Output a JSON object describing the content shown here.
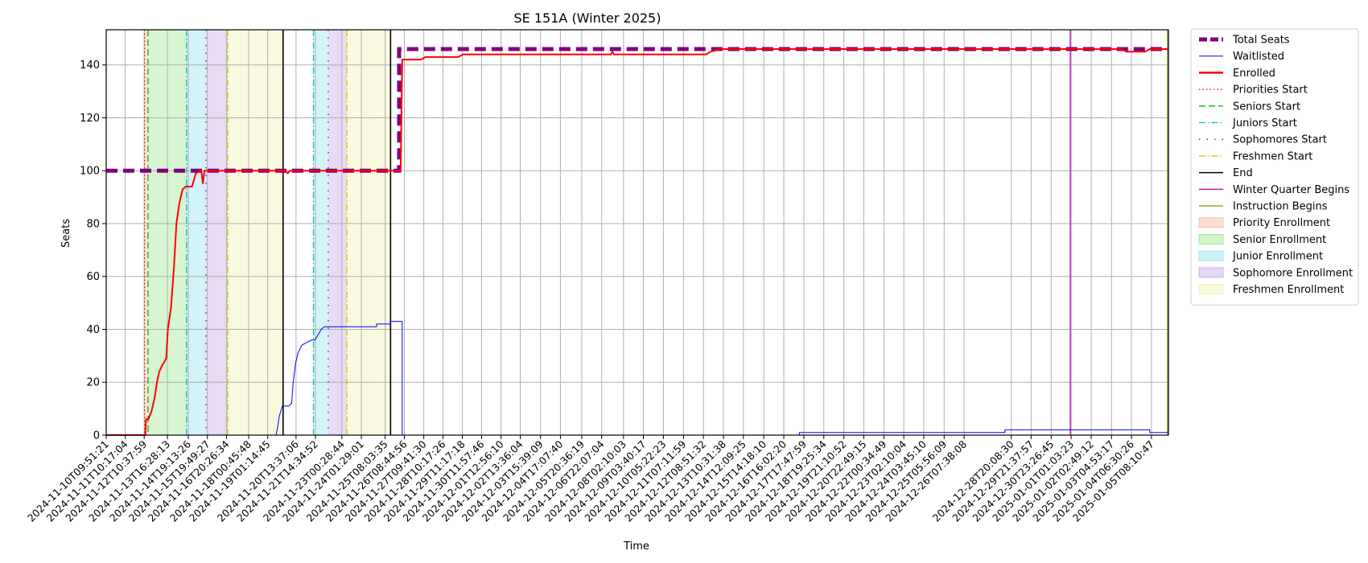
{
  "chart_data": {
    "type": "line",
    "title": "SE 151A (Winter 2025)",
    "xlabel": "Time",
    "ylabel": "Seats",
    "ylim": [
      0,
      153.3
    ],
    "yticks": [
      0,
      20,
      40,
      60,
      80,
      100,
      120,
      140
    ],
    "x_range": [
      "2024-11-10T09:51:21",
      "2025-01-06T06:00:00"
    ],
    "x_ticks": [
      "2024-11-10T09:51:21",
      "2024-11-11T10:17:04",
      "2024-11-12T10:37:59",
      "2024-11-13T16:28:13",
      "2024-11-14T19:13:26",
      "2024-11-15T19:49:27",
      "2024-11-16T20:26:34",
      "2024-11-18T00:45:48",
      "2024-11-19T01:14:45",
      "2024-11-20T13:37:06",
      "2024-11-21T14:34:52",
      "2024-11-23T00:28:44",
      "2024-11-24T01:29:01",
      "2024-11-25T08:03:35",
      "2024-11-26T08:44:56",
      "2024-11-27T09:41:30",
      "2024-11-28T10:17:26",
      "2024-11-29T11:17:18",
      "2024-11-30T11:57:46",
      "2024-12-01T12:56:10",
      "2024-12-02T13:36:04",
      "2024-12-03T15:39:09",
      "2024-12-04T17:07:40",
      "2024-12-05T20:36:19",
      "2024-12-06T22:07:04",
      "2024-12-08T02:10:03",
      "2024-12-09T03:40:17",
      "2024-12-10T05:22:23",
      "2024-12-11T07:11:59",
      "2024-12-12T08:51:32",
      "2024-12-13T10:31:38",
      "2024-12-14T12:09:25",
      "2024-12-15T14:18:10",
      "2024-12-16T16:02:20",
      "2024-12-17T17:47:59",
      "2024-12-18T19:25:34",
      "2024-12-19T21:10:52",
      "2024-12-20T22:49:15",
      "2024-12-22T00:34:49",
      "2024-12-23T02:10:04",
      "2024-12-24T03:45:10",
      "2024-12-25T05:56:09",
      "2024-12-26T07:38:08",
      "2024-12-28T20:08:30",
      "2024-12-29T21:37:57",
      "2024-12-30T23:26:45",
      "2025-01-01T01:03:23",
      "2025-01-02T02:49:12",
      "2025-01-03T04:53:17",
      "2025-01-04T06:30:26",
      "2025-01-05T08:10:47"
    ],
    "grid": true,
    "legend_position": "outside-right",
    "series": [
      {
        "name": "Total Seats",
        "color": "#800080",
        "style": "dashed",
        "width": 5,
        "points": [
          [
            "2024-11-10T09:51:21",
            100
          ],
          [
            "2024-11-26T02:00:00",
            100
          ],
          [
            "2024-11-26T02:00:00",
            146
          ],
          [
            "2025-01-06T06:00:00",
            146
          ]
        ]
      },
      {
        "name": "Waitlisted",
        "color": "#0000ff",
        "style": "solid",
        "width": 1,
        "points": [
          [
            "2024-11-10T09:51:21",
            0
          ],
          [
            "2024-11-19T12:00:00",
            0
          ],
          [
            "2024-11-19T14:00:00",
            3
          ],
          [
            "2024-11-19T16:00:00",
            7
          ],
          [
            "2024-11-19T20:00:00",
            11
          ],
          [
            "2024-11-20T04:00:00",
            11
          ],
          [
            "2024-11-20T08:00:00",
            12
          ],
          [
            "2024-11-20T10:00:00",
            20
          ],
          [
            "2024-11-20T13:00:00",
            27
          ],
          [
            "2024-11-20T16:00:00",
            31
          ],
          [
            "2024-11-20T21:00:00",
            34
          ],
          [
            "2024-11-21T03:00:00",
            35
          ],
          [
            "2024-11-21T10:00:00",
            36
          ],
          [
            "2024-11-21T14:00:00",
            36
          ],
          [
            "2024-11-21T18:00:00",
            38
          ],
          [
            "2024-11-21T22:00:00",
            40
          ],
          [
            "2024-11-22T02:00:00",
            41
          ],
          [
            "2024-11-24T21:00:00",
            41
          ],
          [
            "2024-11-24T21:00:00",
            42
          ],
          [
            "2024-11-25T15:00:00",
            42
          ],
          [
            "2024-11-25T15:00:00",
            43
          ],
          [
            "2024-11-26T06:00:00",
            43
          ],
          [
            "2024-11-26T06:00:00",
            0
          ],
          [
            "2024-12-17T12:00:00",
            0
          ],
          [
            "2024-12-17T12:00:00",
            1
          ],
          [
            "2024-12-28T12:00:00",
            1
          ],
          [
            "2024-12-28T12:00:00",
            2
          ],
          [
            "2025-01-05T06:00:00",
            2
          ],
          [
            "2025-01-05T06:00:00",
            1
          ],
          [
            "2025-01-06T06:00:00",
            1
          ]
        ]
      },
      {
        "name": "Enrolled",
        "color": "#ff0000",
        "style": "solid",
        "width": 2,
        "points": [
          [
            "2024-11-10T09:51:21",
            0
          ],
          [
            "2024-11-12T12:00:00",
            0
          ],
          [
            "2024-11-12T13:00:00",
            6
          ],
          [
            "2024-11-12T16:00:00",
            6
          ],
          [
            "2024-11-12T20:00:00",
            9
          ],
          [
            "2024-11-13T00:00:00",
            14
          ],
          [
            "2024-11-13T03:00:00",
            20
          ],
          [
            "2024-11-13T06:00:00",
            24
          ],
          [
            "2024-11-13T09:00:00",
            26
          ],
          [
            "2024-11-13T13:00:00",
            28
          ],
          [
            "2024-11-13T15:00:00",
            29
          ],
          [
            "2024-11-13T17:00:00",
            40
          ],
          [
            "2024-11-13T21:00:00",
            48
          ],
          [
            "2024-11-14T01:00:00",
            64
          ],
          [
            "2024-11-14T04:00:00",
            80
          ],
          [
            "2024-11-14T08:00:00",
            88
          ],
          [
            "2024-11-14T12:00:00",
            93
          ],
          [
            "2024-11-14T16:00:00",
            94
          ],
          [
            "2024-11-15T00:00:00",
            94
          ],
          [
            "2024-11-15T05:00:00",
            99
          ],
          [
            "2024-11-15T10:00:00",
            100
          ],
          [
            "2024-11-15T12:00:00",
            100
          ],
          [
            "2024-11-15T14:00:00",
            95
          ],
          [
            "2024-11-15T16:00:00",
            100
          ],
          [
            "2024-11-20T00:00:00",
            100
          ],
          [
            "2024-11-20T03:00:00",
            99
          ],
          [
            "2024-11-20T06:00:00",
            100
          ],
          [
            "2024-11-26T04:00:00",
            100
          ],
          [
            "2024-11-26T06:00:00",
            142
          ],
          [
            "2024-11-27T06:00:00",
            142
          ],
          [
            "2024-11-27T12:00:00",
            143
          ],
          [
            "2024-11-29T06:00:00",
            143
          ],
          [
            "2024-11-29T12:00:00",
            144
          ],
          [
            "2024-12-07T10:00:00",
            144
          ],
          [
            "2024-12-07T12:00:00",
            145
          ],
          [
            "2024-12-07T14:00:00",
            144
          ],
          [
            "2024-12-12T12:00:00",
            144
          ],
          [
            "2024-12-12T18:00:00",
            145
          ],
          [
            "2024-12-13T06:00:00",
            146
          ],
          [
            "2025-01-03T18:00:00",
            146
          ],
          [
            "2025-01-04T00:00:00",
            145
          ],
          [
            "2025-01-05T00:00:00",
            145
          ],
          [
            "2025-01-05T06:00:00",
            146
          ],
          [
            "2025-01-06T06:00:00",
            146
          ]
        ]
      }
    ],
    "markers": [
      {
        "name": "Priorities Start",
        "color": "#ff0000",
        "style": "dotted",
        "x": "2024-11-12T11:00:00"
      },
      {
        "name": "Seniors Start",
        "color": "#00bb00",
        "style": "dashed",
        "x": "2024-11-12T15:30:00"
      },
      {
        "name": "Juniors Start",
        "color": "#00bfbf",
        "style": "dashdot",
        "x": "2024-11-14T17:00:00",
        "x2": "2024-11-21T12:00:00"
      },
      {
        "name": "Sophomores Start",
        "color": "#6a00d4",
        "style": "dashdotted",
        "x": "2024-11-15T18:00:00",
        "x2": "2024-11-22T07:00:00"
      },
      {
        "name": "Freshmen Start",
        "color": "#d8c400",
        "style": "dashdot",
        "x": "2024-11-16T22:00:00",
        "x2": "2024-11-23T07:00:00"
      },
      {
        "name": "End",
        "color": "#000000",
        "style": "solid",
        "x": "2024-11-19T21:00:00",
        "x2": "2024-11-25T15:00:00"
      },
      {
        "name": "Winter Quarter Begins",
        "color": "#cc00cc",
        "style": "solid",
        "x": "2025-01-01T00:00:00"
      },
      {
        "name": "Instruction Begins",
        "color": "#7a9a00",
        "style": "solid",
        "x": "2025-01-06T05:00:00"
      }
    ],
    "spans": [
      {
        "name": "Priority Enrollment",
        "color": "#f4b79a",
        "from": "2024-11-12T11:00:00",
        "to": "2024-11-12T15:30:00"
      },
      {
        "name": "Senior Enrollment",
        "color": "#98e68a",
        "from": "2024-11-12T15:30:00",
        "to": "2024-11-14T17:00:00"
      },
      {
        "name": "Junior Enrollment",
        "color": "#8ee2ea",
        "from": "2024-11-14T17:00:00",
        "to": "2024-11-15T18:00:00"
      },
      {
        "name": "Sophomore Enrollment",
        "color": "#c4a6e8",
        "from": "2024-11-15T18:00:00",
        "to": "2024-11-16T22:00:00"
      },
      {
        "name": "Freshmen Enrollment",
        "color": "#f0f0b0",
        "from": "2024-11-16T22:00:00",
        "to": "2024-11-19T21:00:00"
      },
      {
        "name": "Junior Enrollment",
        "color": "#8ee2ea",
        "from": "2024-11-21T12:00:00",
        "to": "2024-11-22T07:00:00"
      },
      {
        "name": "Sophomore Enrollment",
        "color": "#c4a6e8",
        "from": "2024-11-22T07:00:00",
        "to": "2024-11-23T07:00:00"
      },
      {
        "name": "Freshmen Enrollment",
        "color": "#f0f0b0",
        "from": "2024-11-23T07:00:00",
        "to": "2024-11-25T15:00:00"
      }
    ],
    "legend": [
      {
        "label": "Total Seats",
        "kind": "line",
        "color": "#800080",
        "style": "dashed",
        "width": 5
      },
      {
        "label": "Waitlisted",
        "kind": "line",
        "color": "#0000ff",
        "style": "solid",
        "width": 1
      },
      {
        "label": "Enrolled",
        "kind": "line",
        "color": "#ff0000",
        "style": "solid",
        "width": 2.5
      },
      {
        "label": "Priorities Start",
        "kind": "line",
        "color": "#ff0000",
        "style": "dotted",
        "width": 1.3
      },
      {
        "label": "Seniors Start",
        "kind": "line",
        "color": "#00bb00",
        "style": "dashed",
        "width": 1.3
      },
      {
        "label": "Juniors Start",
        "kind": "line",
        "color": "#00bfbf",
        "style": "dashdot",
        "width": 1.3
      },
      {
        "label": "Sophomores Start",
        "kind": "line",
        "color": "#6a00d4",
        "style": "dashdotted",
        "width": 1.3
      },
      {
        "label": "Freshmen Start",
        "kind": "line",
        "color": "#d8c400",
        "style": "dashdot",
        "width": 1.3
      },
      {
        "label": "End",
        "kind": "line",
        "color": "#000000",
        "style": "solid",
        "width": 1.5
      },
      {
        "label": "Winter Quarter Begins",
        "kind": "line",
        "color": "#cc00cc",
        "style": "solid",
        "width": 1.3
      },
      {
        "label": "Instruction Begins",
        "kind": "line",
        "color": "#7a9a00",
        "style": "solid",
        "width": 1.3
      },
      {
        "label": "Priority Enrollment",
        "kind": "patch",
        "color": "#f4b79a"
      },
      {
        "label": "Senior Enrollment",
        "kind": "patch",
        "color": "#98e68a"
      },
      {
        "label": "Junior Enrollment",
        "kind": "patch",
        "color": "#8ee2ea"
      },
      {
        "label": "Sophomore Enrollment",
        "kind": "patch",
        "color": "#c4a6e8"
      },
      {
        "label": "Freshmen Enrollment",
        "kind": "patch",
        "color": "#f0f0b0"
      }
    ]
  }
}
